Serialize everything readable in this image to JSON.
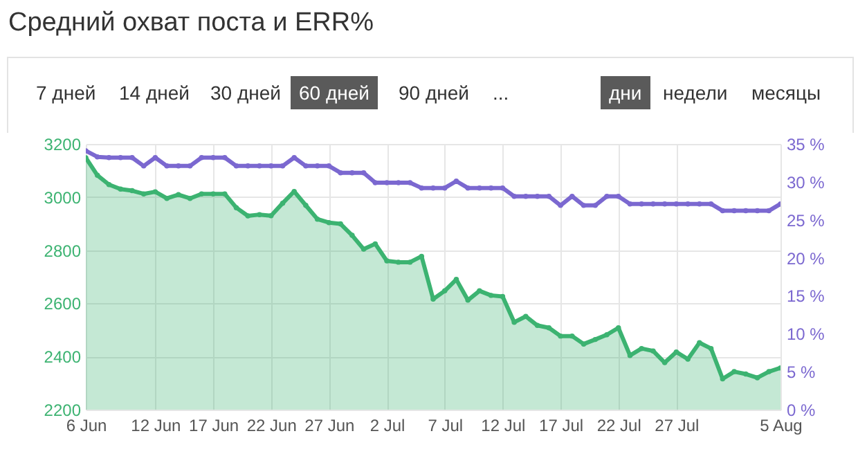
{
  "chart_data": {
    "type": "line",
    "title": "Средний охват поста и ERR%",
    "annotations": [
      "7 дней",
      "14 дней",
      "30 дней",
      "60 дней",
      "90 дней",
      "...",
      "дни",
      "недели",
      "месяцы"
    ],
    "x": [
      "--06-06",
      "--06-07",
      "--06-08",
      "--06-09",
      "--06-10",
      "--06-11",
      "--06-12",
      "--06-13",
      "--06-14",
      "--06-15",
      "--06-16",
      "--06-17",
      "--06-18",
      "--06-19",
      "--06-20",
      "--06-21",
      "--06-22",
      "--06-23",
      "--06-24",
      "--06-25",
      "--06-26",
      "--06-27",
      "--06-28",
      "--06-29",
      "--06-30",
      "--07-01",
      "--07-02",
      "--07-03",
      "--07-04",
      "--07-05",
      "--07-06",
      "--07-07",
      "--07-08",
      "--07-09",
      "--07-10",
      "--07-11",
      "--07-12",
      "--07-13",
      "--07-14",
      "--07-15",
      "--07-16",
      "--07-17",
      "--07-18",
      "--07-19",
      "--07-20",
      "--07-21",
      "--07-22",
      "--07-23",
      "--07-24",
      "--07-25",
      "--07-26",
      "--07-27",
      "--07-28",
      "--07-29",
      "--07-30",
      "--07-31",
      "--08-01",
      "--08-02",
      "--08-03",
      "--08-04",
      "--08-05"
    ],
    "series": [
      {
        "type": "area",
        "color": "#3cb371",
        "values": [
          3148,
          3082,
          3047,
          3030,
          3024,
          3012,
          3020,
          2995,
          3009,
          2995,
          3012,
          3012,
          3012,
          2960,
          2929,
          2934,
          2930,
          2977,
          3021,
          2969,
          2917,
          2904,
          2899,
          2856,
          2804,
          2824,
          2760,
          2755,
          2755,
          2777,
          2616,
          2647,
          2690,
          2612,
          2647,
          2630,
          2626,
          2529,
          2551,
          2517,
          2508,
          2477,
          2477,
          2447,
          2464,
          2482,
          2508,
          2404,
          2430,
          2421,
          2377,
          2417,
          2390,
          2452,
          2430,
          2316,
          2343,
          2334,
          2320,
          2343,
          2357
        ]
      },
      {
        "type": "line",
        "axis": "y2",
        "color": "#7b68d0",
        "values": [
          34.1,
          33.3,
          33.2,
          33.2,
          33.2,
          32.1,
          33.2,
          32.1,
          32.1,
          32.1,
          33.2,
          33.2,
          33.2,
          32.1,
          32.1,
          32.1,
          32.1,
          32.1,
          33.2,
          32.1,
          32.1,
          32.1,
          31.2,
          31.2,
          31.2,
          29.9,
          29.9,
          29.9,
          29.9,
          29.2,
          29.2,
          29.2,
          30.1,
          29.2,
          29.2,
          29.2,
          29.2,
          28.1,
          28.1,
          28.1,
          28.1,
          26.9,
          28.1,
          26.9,
          26.9,
          28.1,
          28.1,
          27.1,
          27.1,
          27.1,
          27.1,
          27.1,
          27.1,
          27.1,
          27.1,
          26.2,
          26.2,
          26.2,
          26.2,
          26.2,
          27.1
        ]
      }
    ],
    "xlim": [
      "--06-06",
      "--08-05"
    ],
    "xticks": [
      {
        "value": "--06-06",
        "label": "6 Jun"
      },
      {
        "value": "--06-12",
        "label": "12 Jun"
      },
      {
        "value": "--06-17",
        "label": "17 Jun"
      },
      {
        "value": "--06-22",
        "label": "22 Jun"
      },
      {
        "value": "--06-27",
        "label": "27 Jun"
      },
      {
        "value": "--07-02",
        "label": "2 Jul"
      },
      {
        "value": "--07-07",
        "label": "7 Jul"
      },
      {
        "value": "--07-12",
        "label": "12 Jul"
      },
      {
        "value": "--07-17",
        "label": "17 Jul"
      },
      {
        "value": "--07-22",
        "label": "22 Jul"
      },
      {
        "value": "--07-27",
        "label": "27 Jul"
      },
      {
        "value": "--08-05",
        "label": "5 Aug"
      }
    ],
    "ylim": [
      2200,
      3200
    ],
    "yticks": [
      2200,
      2400,
      2600,
      2800,
      3000,
      3200
    ],
    "y2lim": [
      0,
      35
    ],
    "y2ticks": [
      {
        "value": 0,
        "label": "0 %"
      },
      {
        "value": 5,
        "label": "5 %"
      },
      {
        "value": 10,
        "label": "10 %"
      },
      {
        "value": 15,
        "label": "15 %"
      },
      {
        "value": 20,
        "label": "20 %"
      },
      {
        "value": 25,
        "label": "25 %"
      },
      {
        "value": 30,
        "label": "30 %"
      },
      {
        "value": 35,
        "label": "35 %"
      }
    ],
    "grid": true,
    "marker": "circle",
    "line_style": "solid"
  }
}
